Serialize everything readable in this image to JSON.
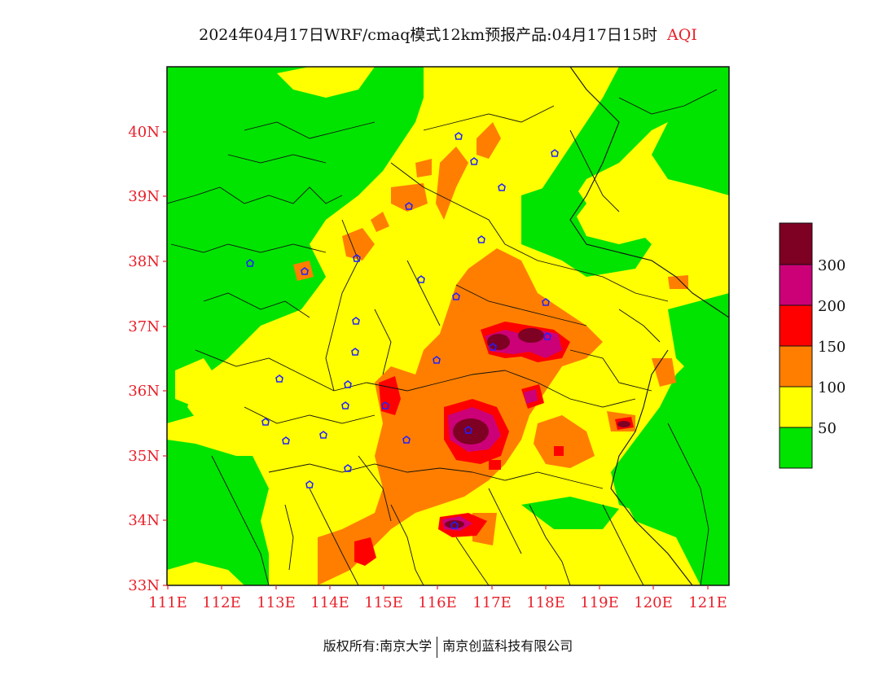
{
  "title": {
    "main": "2024年04月17日WRF/cmaq模式12km预报产品:04月17日15时",
    "variable": "AQI"
  },
  "map": {
    "lon_range": [
      111,
      121.4
    ],
    "lat_range": [
      33,
      41
    ],
    "lon_ticks": [
      "111E",
      "112E",
      "113E",
      "114E",
      "115E",
      "116E",
      "117E",
      "118E",
      "119E",
      "120E",
      "121E"
    ],
    "lat_ticks": [
      "33N",
      "34N",
      "35N",
      "36N",
      "37N",
      "38N",
      "39N",
      "40N"
    ],
    "tick_color": "#e8202a"
  },
  "legend": {
    "labels": [
      "50",
      "100",
      "150",
      "200",
      "300"
    ],
    "colors": [
      "#00e400",
      "#ffff00",
      "#ff7e00",
      "#ff0000",
      "#cc0077",
      "#7e0023"
    ]
  },
  "footer": {
    "left": "版权所有:南京大学",
    "right": "南京创蓝科技有限公司"
  }
}
